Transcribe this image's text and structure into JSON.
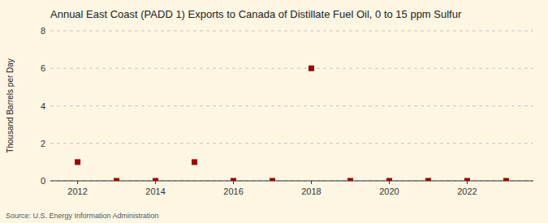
{
  "chart_data": {
    "type": "scatter",
    "title": "Annual East Coast (PADD 1) Exports to Canada of Distillate Fuel Oil, 0 to 15 ppm Sulfur",
    "y_label": "Thousand Barrels per Day",
    "source": "Source: U.S. Energy Information Administration",
    "x": [
      2012,
      2013,
      2014,
      2015,
      2016,
      2017,
      2018,
      2019,
      2020,
      2021,
      2022,
      2023
    ],
    "values": [
      1,
      0,
      0,
      1,
      0,
      0,
      6,
      0,
      0,
      0,
      0,
      0
    ],
    "xlim": [
      2011.3,
      2023.7
    ],
    "ylim": [
      0,
      8
    ],
    "xticks": [
      2012,
      2014,
      2016,
      2018,
      2020,
      2022
    ],
    "yticks": [
      0,
      2,
      4,
      6,
      8
    ],
    "color": "#a00000",
    "marker": "square",
    "grid": "y"
  }
}
